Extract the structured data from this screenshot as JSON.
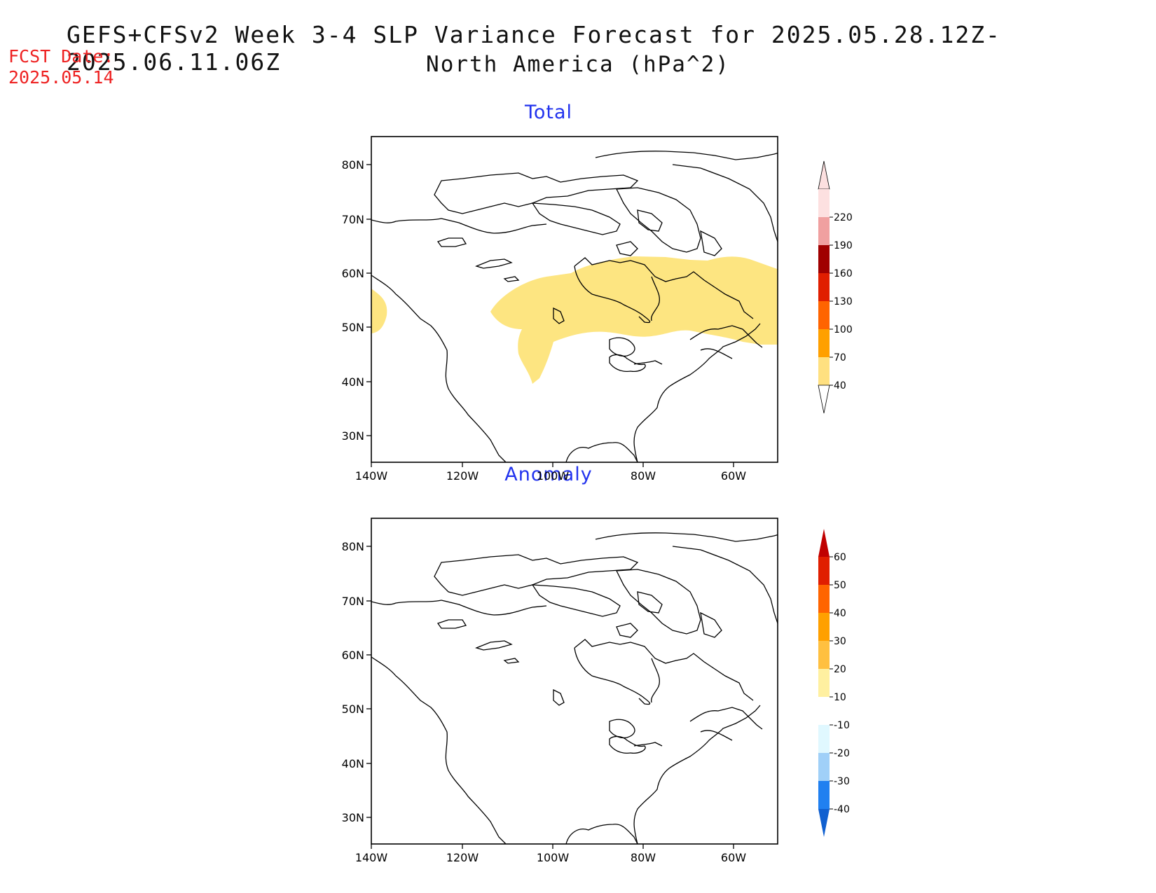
{
  "figure": {
    "title_line1": "GEFS+CFSv2 Week 3-4 SLP Variance Forecast for 2025.05.28.12Z-2025.06.11.06Z",
    "title_line2": "North America (hPa^2)",
    "fcst_label": "FCST Date:",
    "fcst_date": "2025.05.14"
  },
  "map_axes": {
    "lat_ticks": [
      "80N",
      "70N",
      "60N",
      "50N",
      "40N",
      "30N"
    ],
    "lon_ticks": [
      "140W",
      "120W",
      "100W",
      "80W",
      "60W"
    ]
  },
  "panels": {
    "total": {
      "title": "Total",
      "colorbar_labels": [
        "220",
        "190",
        "160",
        "130",
        "100",
        "70",
        "40"
      ],
      "colors": [
        "#fde0e0",
        "#f0a0a0",
        "#a00000",
        "#e01e00",
        "#ff6400",
        "#ffa000",
        "#ffe080"
      ],
      "shaded_region": "40-70 hPa^2 band across central Canada, Great Lakes, Quebec and Atlantic coast"
    },
    "anomaly": {
      "title": "Anomaly",
      "colorbar_labels": [
        "60",
        "50",
        "40",
        "30",
        "20",
        "10",
        "-10",
        "-20",
        "-30",
        "-40"
      ],
      "colors": [
        "#c00000",
        "#e01e00",
        "#ff6400",
        "#ffa000",
        "#ffc040",
        "#fff0a0",
        "#ffffff",
        "#e0f8ff",
        "#a0d0f8",
        "#2080f0",
        "#1060d0"
      ]
    }
  }
}
